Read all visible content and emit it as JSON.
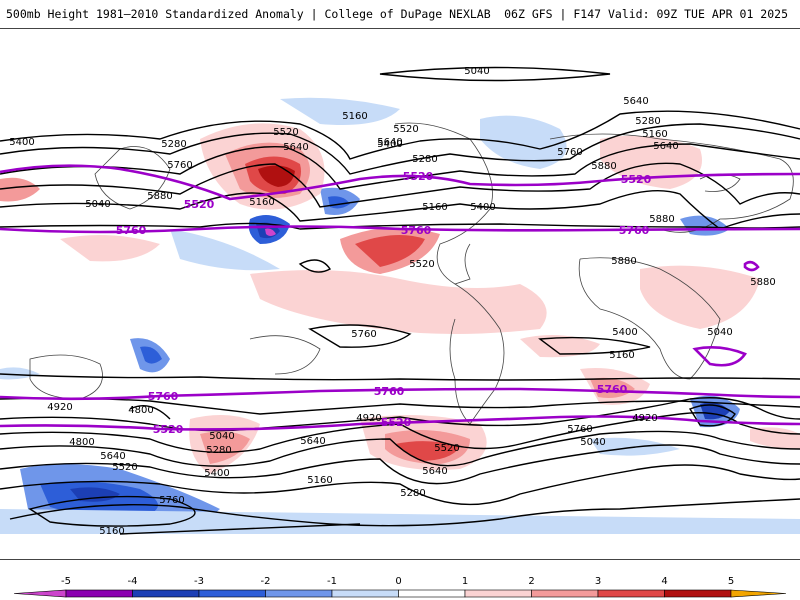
{
  "header": {
    "title": "500mb Height 1981—2010 Standardized Anomaly | College of DuPage NEXLAB",
    "run_info": "06Z GFS | F147 Valid: 09Z TUE APR 01 2025"
  },
  "contour_labels": {
    "black": [
      "5040",
      "5160",
      "5400",
      "5280",
      "5520",
      "5640",
      "5760",
      "5880",
      "5040",
      "5160",
      "5400",
      "5520",
      "5640",
      "5280",
      "5160",
      "5400",
      "5520",
      "5640",
      "5280",
      "5160",
      "5640",
      "5760",
      "5880",
      "5880",
      "5880",
      "5880",
      "5760",
      "5400",
      "5160",
      "5040",
      "4920",
      "4800",
      "4800",
      "5640",
      "5520",
      "5760",
      "5160",
      "5280",
      "4920",
      "5040",
      "5640",
      "5400",
      "5160",
      "5280",
      "5520",
      "5640",
      "5760",
      "5040",
      "4920"
    ],
    "purple": [
      "5520",
      "5520",
      "5520",
      "5760",
      "5760",
      "5760",
      "5760",
      "5760",
      "5760",
      "5520",
      "5520"
    ]
  },
  "colorbar": {
    "ticks": [
      "-5",
      "-4",
      "-3",
      "-2",
      "-1",
      "0",
      "1",
      "2",
      "3",
      "4",
      "5"
    ],
    "colors": [
      "#cc44cc",
      "#8b00b0",
      "#1c3fb5",
      "#2d5ed8",
      "#6f96ea",
      "#c7dcf8",
      "#ffffff",
      "#fbd3d3",
      "#f39a9a",
      "#e04848",
      "#b01010",
      "#f2a500"
    ]
  }
}
